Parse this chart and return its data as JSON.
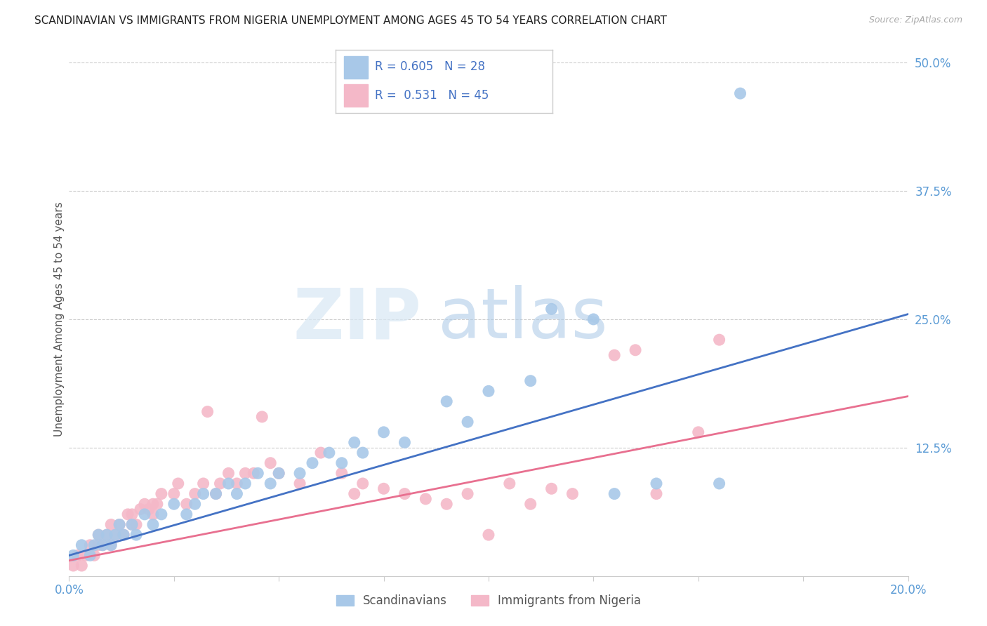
{
  "title": "SCANDINAVIAN VS IMMIGRANTS FROM NIGERIA UNEMPLOYMENT AMONG AGES 45 TO 54 YEARS CORRELATION CHART",
  "source": "Source: ZipAtlas.com",
  "ylabel": "Unemployment Among Ages 45 to 54 years",
  "xlim": [
    0.0,
    0.2
  ],
  "ylim": [
    0.0,
    0.5
  ],
  "xticks": [
    0.0,
    0.025,
    0.05,
    0.075,
    0.1,
    0.125,
    0.15,
    0.175,
    0.2
  ],
  "yticks": [
    0.0,
    0.125,
    0.25,
    0.375,
    0.5
  ],
  "ytick_labels": [
    "",
    "12.5%",
    "25.0%",
    "37.5%",
    "50.0%"
  ],
  "blue_color": "#a8c8e8",
  "pink_color": "#f4b8c8",
  "blue_line_color": "#4472c4",
  "pink_line_color": "#e87090",
  "watermark_zip": "ZIP",
  "watermark_atlas": "atlas",
  "background_color": "#ffffff",
  "grid_color": "#cccccc",
  "tick_color": "#5b9bd5",
  "blue_scatter_x": [
    0.001,
    0.003,
    0.005,
    0.006,
    0.007,
    0.008,
    0.009,
    0.01,
    0.011,
    0.012,
    0.013,
    0.015,
    0.016,
    0.018,
    0.02,
    0.022,
    0.025,
    0.028,
    0.03,
    0.032,
    0.035,
    0.038,
    0.04,
    0.042,
    0.045,
    0.048,
    0.05,
    0.055,
    0.058,
    0.062,
    0.065,
    0.068,
    0.07,
    0.075,
    0.08,
    0.09,
    0.095,
    0.1,
    0.11,
    0.115,
    0.125,
    0.13,
    0.14,
    0.155,
    0.16
  ],
  "blue_scatter_y": [
    0.02,
    0.03,
    0.02,
    0.03,
    0.04,
    0.03,
    0.04,
    0.03,
    0.04,
    0.05,
    0.04,
    0.05,
    0.04,
    0.06,
    0.05,
    0.06,
    0.07,
    0.06,
    0.07,
    0.08,
    0.08,
    0.09,
    0.08,
    0.09,
    0.1,
    0.09,
    0.1,
    0.1,
    0.11,
    0.12,
    0.11,
    0.13,
    0.12,
    0.14,
    0.13,
    0.17,
    0.15,
    0.18,
    0.19,
    0.26,
    0.25,
    0.08,
    0.09,
    0.09,
    0.47
  ],
  "pink_scatter_x": [
    0.001,
    0.002,
    0.003,
    0.004,
    0.005,
    0.006,
    0.007,
    0.007,
    0.008,
    0.009,
    0.01,
    0.01,
    0.011,
    0.012,
    0.013,
    0.014,
    0.015,
    0.015,
    0.016,
    0.017,
    0.018,
    0.019,
    0.02,
    0.02,
    0.021,
    0.022,
    0.025,
    0.026,
    0.028,
    0.03,
    0.032,
    0.033,
    0.035,
    0.036,
    0.038,
    0.04,
    0.042,
    0.044,
    0.046,
    0.048,
    0.05,
    0.055,
    0.06,
    0.065,
    0.068,
    0.07,
    0.075,
    0.08,
    0.085,
    0.09,
    0.095,
    0.1,
    0.105,
    0.11,
    0.115,
    0.12,
    0.13,
    0.135,
    0.14,
    0.15,
    0.155
  ],
  "pink_scatter_y": [
    0.01,
    0.02,
    0.01,
    0.02,
    0.03,
    0.02,
    0.03,
    0.04,
    0.03,
    0.04,
    0.03,
    0.05,
    0.04,
    0.05,
    0.04,
    0.06,
    0.05,
    0.06,
    0.05,
    0.065,
    0.07,
    0.065,
    0.06,
    0.07,
    0.07,
    0.08,
    0.08,
    0.09,
    0.07,
    0.08,
    0.09,
    0.16,
    0.08,
    0.09,
    0.1,
    0.09,
    0.1,
    0.1,
    0.155,
    0.11,
    0.1,
    0.09,
    0.12,
    0.1,
    0.08,
    0.09,
    0.085,
    0.08,
    0.075,
    0.07,
    0.08,
    0.04,
    0.09,
    0.07,
    0.085,
    0.08,
    0.215,
    0.22,
    0.08,
    0.14,
    0.23
  ],
  "blue_trend_x0": 0.0,
  "blue_trend_y0": 0.02,
  "blue_trend_x1": 0.2,
  "blue_trend_y1": 0.255,
  "pink_trend_x0": 0.0,
  "pink_trend_y0": 0.015,
  "pink_trend_x1": 0.2,
  "pink_trend_y1": 0.175
}
